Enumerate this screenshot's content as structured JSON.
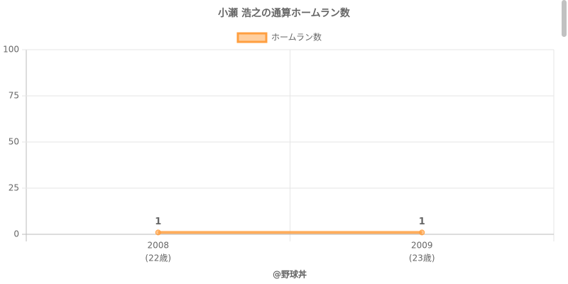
{
  "chart_data": {
    "type": "line",
    "title": "小瀬 浩之の通算ホームラン数",
    "xlabel": "@野球丼",
    "categories": [
      "2008",
      "2009"
    ],
    "category_sublabels": [
      "(22歳)",
      "(23歳)"
    ],
    "series": [
      {
        "name": "ホームラン数",
        "color": "#ff9f40",
        "values": [
          1,
          1
        ]
      }
    ],
    "ylim": [
      0,
      100
    ],
    "yticks": [
      0,
      25,
      50,
      75,
      100
    ],
    "grid": true,
    "legend": "top"
  }
}
